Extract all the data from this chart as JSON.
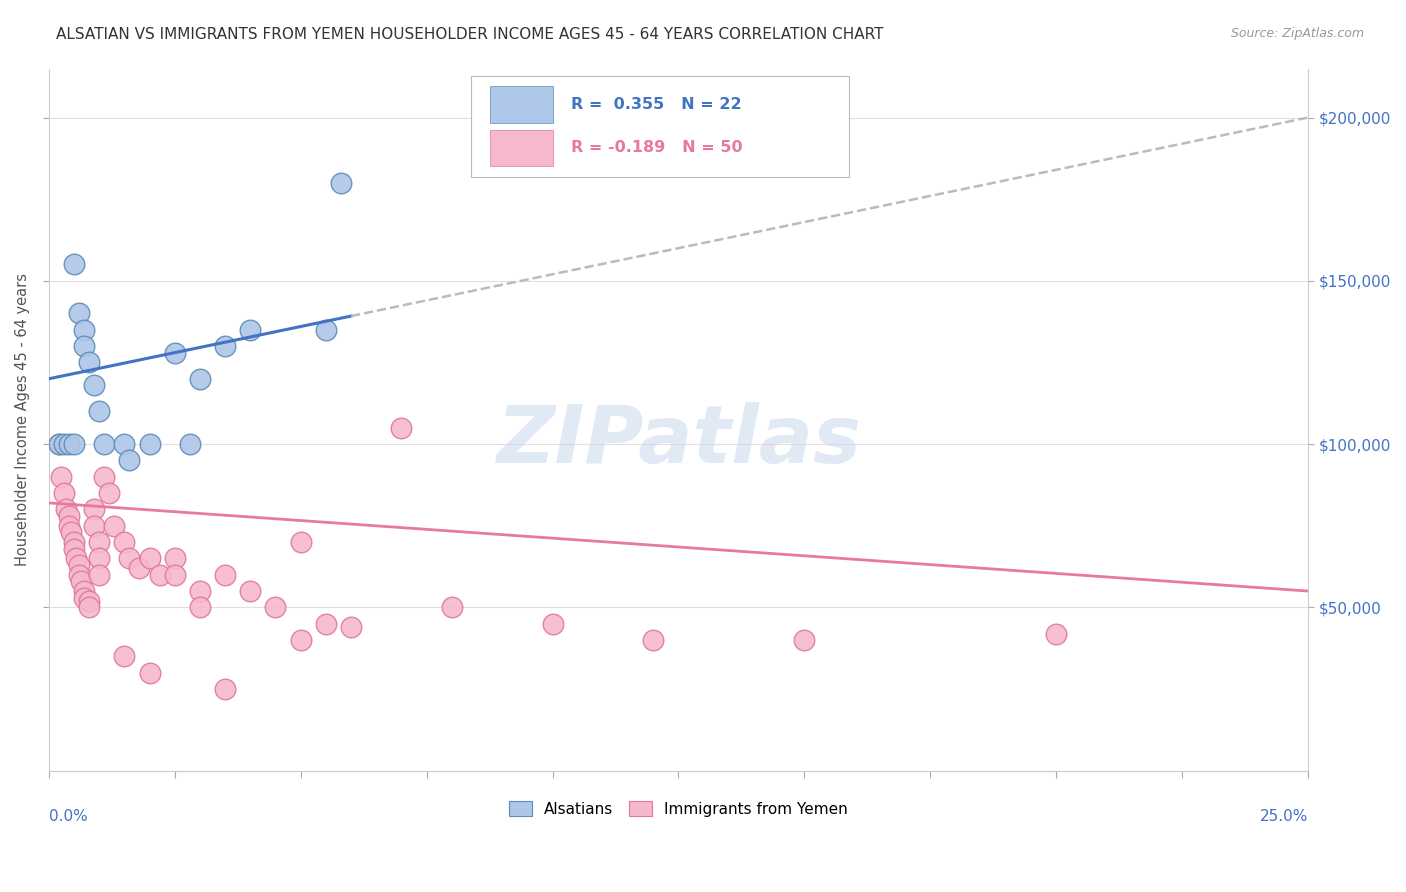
{
  "title": "ALSATIAN VS IMMIGRANTS FROM YEMEN HOUSEHOLDER INCOME AGES 45 - 64 YEARS CORRELATION CHART",
  "source": "Source: ZipAtlas.com",
  "ylabel": "Householder Income Ages 45 - 64 years",
  "legend_bottom": [
    "Alsatians",
    "Immigrants from Yemen"
  ],
  "blue_r": "R =  0.355",
  "blue_n": "N = 22",
  "pink_r": "R = -0.189",
  "pink_n": "N = 50",
  "blue_scatter": [
    [
      0.2,
      100000
    ],
    [
      0.3,
      100000
    ],
    [
      0.4,
      100000
    ],
    [
      0.5,
      100000
    ],
    [
      0.5,
      155000
    ],
    [
      0.6,
      140000
    ],
    [
      0.7,
      135000
    ],
    [
      0.7,
      130000
    ],
    [
      0.8,
      125000
    ],
    [
      0.9,
      118000
    ],
    [
      1.0,
      110000
    ],
    [
      1.1,
      100000
    ],
    [
      1.5,
      100000
    ],
    [
      1.6,
      95000
    ],
    [
      2.0,
      100000
    ],
    [
      2.5,
      128000
    ],
    [
      3.0,
      120000
    ],
    [
      3.5,
      130000
    ],
    [
      4.0,
      135000
    ],
    [
      5.5,
      135000
    ],
    [
      5.8,
      180000
    ],
    [
      2.8,
      100000
    ]
  ],
  "pink_scatter": [
    [
      0.2,
      100000
    ],
    [
      0.25,
      90000
    ],
    [
      0.3,
      85000
    ],
    [
      0.35,
      80000
    ],
    [
      0.4,
      78000
    ],
    [
      0.4,
      75000
    ],
    [
      0.45,
      73000
    ],
    [
      0.5,
      70000
    ],
    [
      0.5,
      68000
    ],
    [
      0.55,
      65000
    ],
    [
      0.6,
      63000
    ],
    [
      0.6,
      60000
    ],
    [
      0.65,
      58000
    ],
    [
      0.7,
      55000
    ],
    [
      0.7,
      53000
    ],
    [
      0.8,
      52000
    ],
    [
      0.8,
      50000
    ],
    [
      0.9,
      80000
    ],
    [
      0.9,
      75000
    ],
    [
      1.0,
      70000
    ],
    [
      1.0,
      65000
    ],
    [
      1.0,
      60000
    ],
    [
      1.1,
      90000
    ],
    [
      1.2,
      85000
    ],
    [
      1.3,
      75000
    ],
    [
      1.5,
      70000
    ],
    [
      1.6,
      65000
    ],
    [
      1.8,
      62000
    ],
    [
      2.0,
      65000
    ],
    [
      2.2,
      60000
    ],
    [
      2.5,
      65000
    ],
    [
      2.5,
      60000
    ],
    [
      3.0,
      55000
    ],
    [
      3.0,
      50000
    ],
    [
      3.5,
      60000
    ],
    [
      4.0,
      55000
    ],
    [
      4.5,
      50000
    ],
    [
      5.0,
      70000
    ],
    [
      5.5,
      45000
    ],
    [
      6.0,
      44000
    ],
    [
      7.0,
      105000
    ],
    [
      8.0,
      50000
    ],
    [
      10.0,
      45000
    ],
    [
      12.0,
      40000
    ],
    [
      1.5,
      35000
    ],
    [
      2.0,
      30000
    ],
    [
      3.5,
      25000
    ],
    [
      5.0,
      40000
    ],
    [
      15.0,
      40000
    ],
    [
      20.0,
      42000
    ]
  ],
  "blue_trend": [
    0,
    25,
    120000,
    200000
  ],
  "blue_solid_end": 6.0,
  "pink_trend": [
    0,
    25,
    82000,
    55000
  ],
  "xlim": [
    0,
    25
  ],
  "ylim": [
    0,
    215000
  ],
  "yticks": [
    50000,
    100000,
    150000,
    200000
  ],
  "ytick_labels": [
    "$50,000",
    "$100,000",
    "$150,000",
    "$200,000"
  ],
  "xtick_positions": [
    0,
    2.5,
    5.0,
    7.5,
    10.0,
    12.5,
    15.0,
    17.5,
    20.0,
    22.5,
    25.0
  ],
  "blue_fill_color": "#AEC6E8",
  "blue_edge_color": "#5B8DB8",
  "pink_fill_color": "#F5B8CE",
  "pink_edge_color": "#E0789A",
  "blue_line_color": "#4472C4",
  "pink_line_color": "#E878A0",
  "dashed_line_color": "#BBBBBB",
  "ytick_color": "#4472C4",
  "background_color": "#FFFFFF",
  "watermark_text": "ZIPatlas",
  "watermark_color": "#C8D8EC",
  "grid_color": "#E0E0E0"
}
